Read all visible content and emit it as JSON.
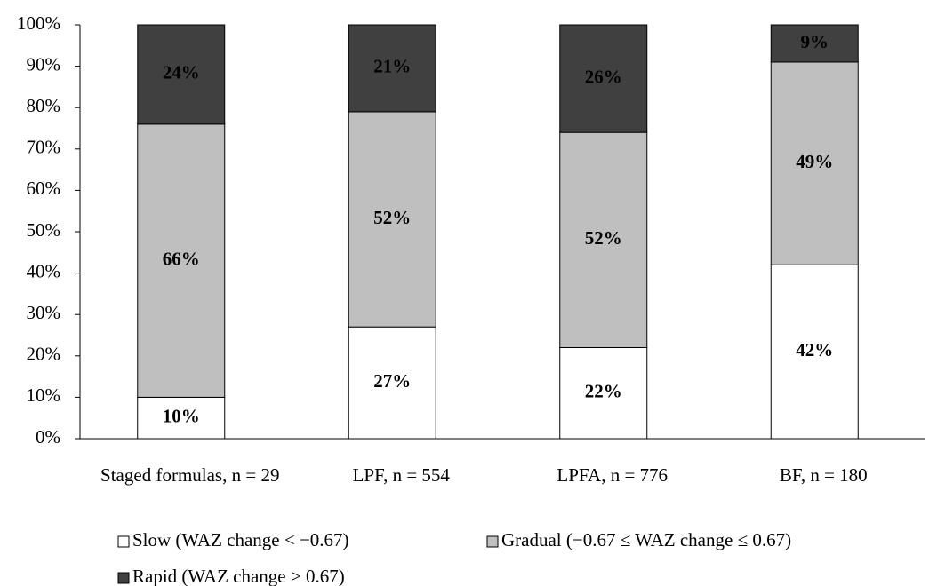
{
  "chart_data": {
    "type": "stacked_bar",
    "categories": [
      "Staged formulas, n = 29",
      "LPF, n = 554",
      "LPFA, n = 776",
      "BF, n = 180"
    ],
    "series": [
      {
        "name": "Slow (WAZ change < −0.67)",
        "color": "#ffffff",
        "label_color": "#000000",
        "values": [
          10,
          27,
          22,
          42
        ],
        "value_labels": [
          "10%",
          "27%",
          "22%",
          "42%"
        ]
      },
      {
        "name": "Gradual (−0.67 ≤ WAZ change ≤ 0.67)",
        "color": "#bfbfbf",
        "label_color": "#000000",
        "values": [
          66,
          52,
          52,
          49
        ],
        "value_labels": [
          "66%",
          "52%",
          "52%",
          "49%"
        ]
      },
      {
        "name": "Rapid (WAZ change > 0.67)",
        "color": "#404040",
        "label_color": "#ffffff",
        "values": [
          24,
          21,
          26,
          9
        ],
        "value_labels": [
          "24%",
          "21%",
          "26%",
          "9%"
        ]
      }
    ],
    "ylim": [
      0,
      100
    ],
    "yticks": [
      {
        "value": 0,
        "label": "0%"
      },
      {
        "value": 10,
        "label": "10%"
      },
      {
        "value": 20,
        "label": "20%"
      },
      {
        "value": 30,
        "label": "30%"
      },
      {
        "value": 40,
        "label": "40%"
      },
      {
        "value": 50,
        "label": "50%"
      },
      {
        "value": 60,
        "label": "60%"
      },
      {
        "value": 70,
        "label": "70%"
      },
      {
        "value": 80,
        "label": "80%"
      },
      {
        "value": 90,
        "label": "90%"
      },
      {
        "value": 100,
        "label": "100%"
      }
    ],
    "grid": false,
    "legend": "bottom"
  }
}
